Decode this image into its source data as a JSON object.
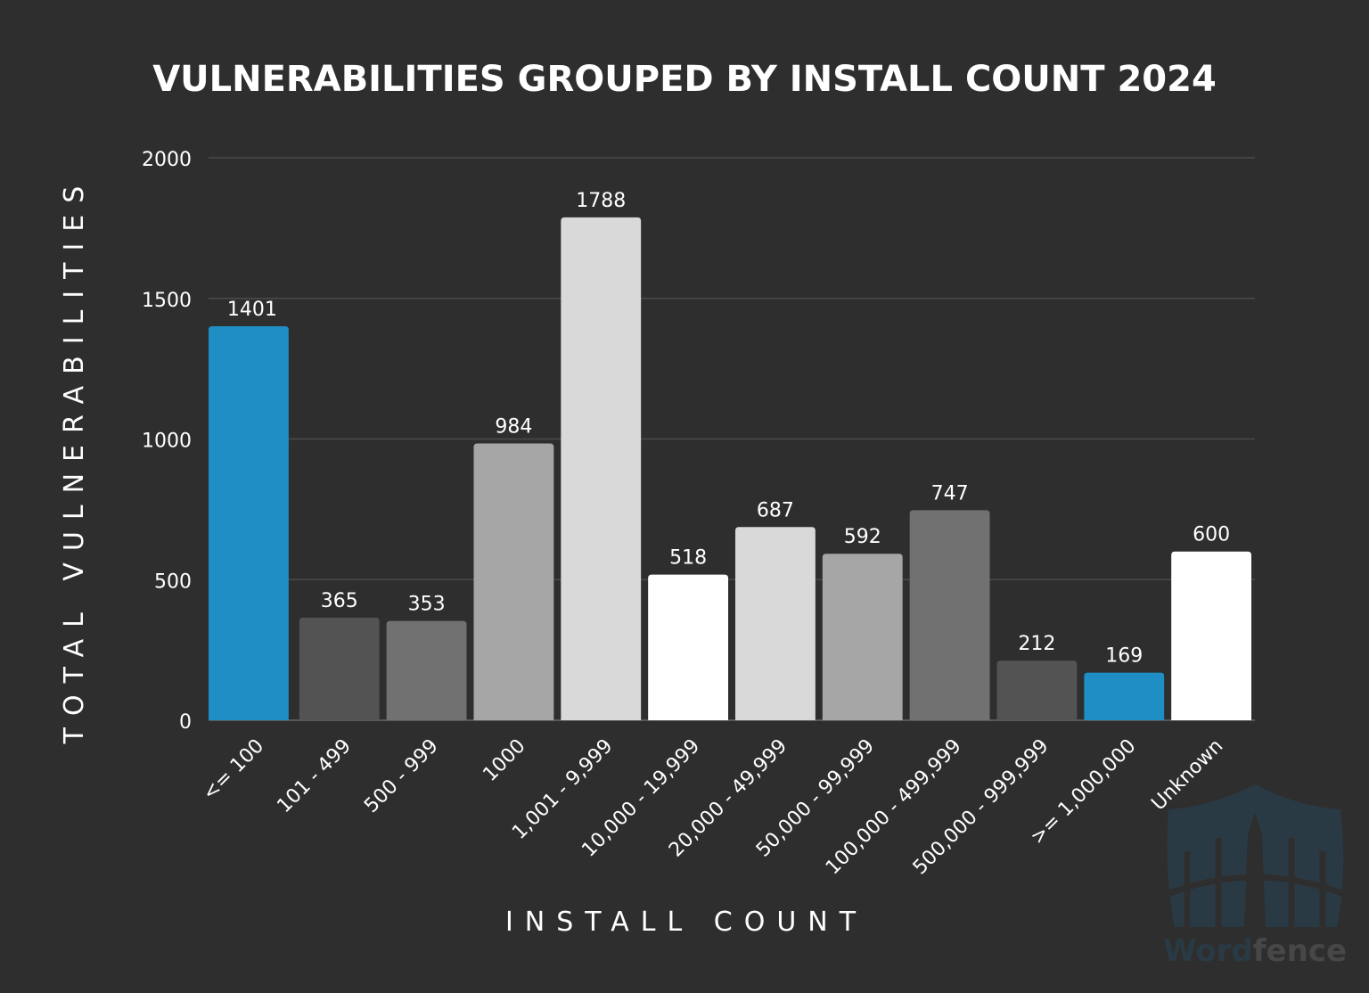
{
  "chart_data": {
    "type": "bar",
    "title": "VULNERABILITIES GROUPED BY INSTALL COUNT 2024",
    "xlabel": "INSTALL COUNT",
    "ylabel": "TOTAL VULNERABILITIES",
    "ylim": [
      0,
      2000
    ],
    "yticks": [
      0,
      500,
      1000,
      1500,
      2000
    ],
    "grid": true,
    "categories": [
      "<= 100",
      "101 - 499",
      "500 - 999",
      "1000",
      "1,001 - 9,999",
      "10,000 - 19,999",
      "20,000 - 49,999",
      "50,000 - 99,999",
      "100,000 - 499,999",
      "500,000 - 999,999",
      ">= 1,000,000",
      "Unknown"
    ],
    "values": [
      1401,
      365,
      353,
      984,
      1788,
      518,
      687,
      592,
      747,
      212,
      169,
      600
    ],
    "colors": [
      "#1f8ec4",
      "#535353",
      "#717171",
      "#a6a6a6",
      "#d9d9d9",
      "#ffffff",
      "#d9d9d9",
      "#a6a6a6",
      "#717171",
      "#535353",
      "#1f8ec4",
      "#ffffff"
    ],
    "data_labels": true
  },
  "watermark": {
    "icon": "wordfence-shield-icon",
    "text_part1": "Word",
    "text_part2": "fence"
  },
  "colors": {
    "background": "#2e2e2e",
    "text": "#ffffff",
    "grid": "#4a4a4a"
  }
}
